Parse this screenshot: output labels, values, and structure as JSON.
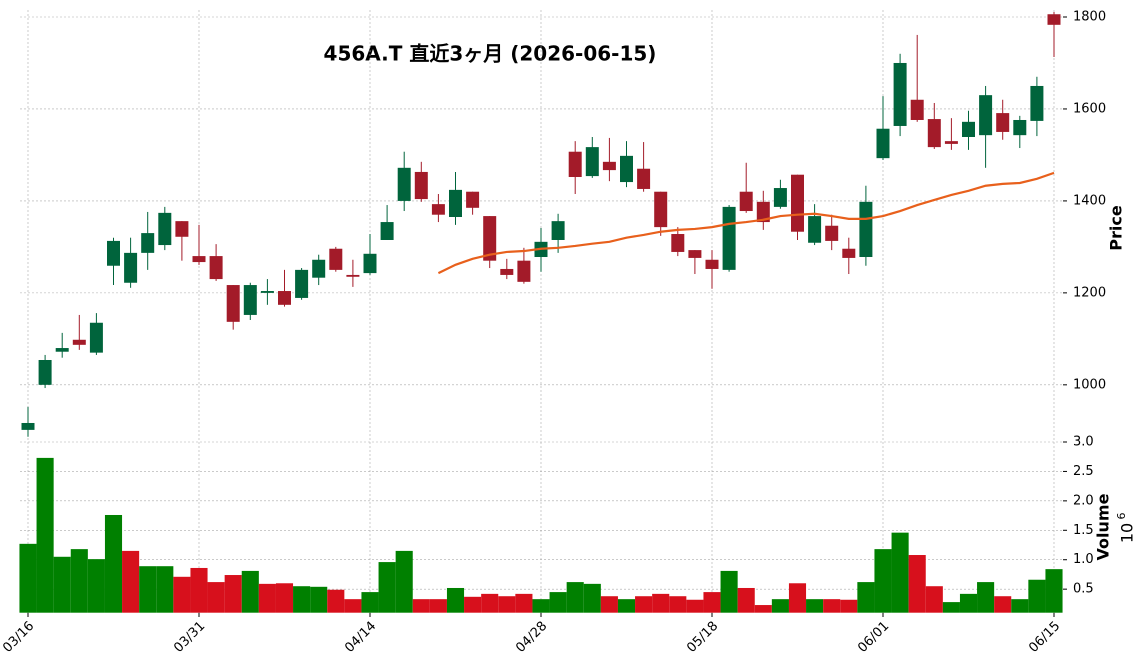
{
  "chart_data": [
    {
      "type": "candlestick",
      "title": "456A.T 直近3ヶ月 (2026-06-15)",
      "ylabel": "Price",
      "categories": [
        "03/16",
        null,
        null,
        null,
        null,
        null,
        null,
        null,
        null,
        null,
        "03/31",
        null,
        null,
        null,
        null,
        null,
        null,
        null,
        null,
        null,
        "04/14",
        null,
        null,
        null,
        null,
        null,
        null,
        null,
        null,
        null,
        "04/28",
        null,
        null,
        null,
        null,
        null,
        null,
        null,
        null,
        null,
        "05/18",
        null,
        null,
        null,
        null,
        null,
        null,
        null,
        null,
        null,
        "06/01",
        null,
        null,
        null,
        null,
        null,
        null,
        null,
        null,
        null,
        "06/15"
      ],
      "open": [
        902,
        1000,
        1072,
        1098,
        1070,
        1259,
        1222,
        1287,
        1304,
        1356,
        1280,
        1280,
        1217,
        1152,
        1200,
        1204,
        1189,
        1233,
        1296,
        1239,
        1243,
        1315,
        1400,
        1463,
        1393,
        1365,
        1420,
        1367,
        1252,
        1270,
        1278,
        1315,
        1507,
        1454,
        1485,
        1441,
        1470,
        1420,
        1328,
        1293,
        1272,
        1250,
        1420,
        1398,
        1387,
        1457,
        1309,
        1346,
        1296,
        1278,
        1493,
        1563,
        1620,
        1578,
        1530,
        1539,
        1543,
        1591,
        1543,
        1574,
        1806
      ],
      "high": [
        952,
        1065,
        1113,
        1152,
        1156,
        1320,
        1320,
        1376,
        1387,
        1356,
        1348,
        1306,
        1217,
        1222,
        1230,
        1250,
        1254,
        1283,
        1300,
        1272,
        1328,
        1391,
        1507,
        1485,
        1415,
        1463,
        1420,
        1367,
        1274,
        1298,
        1341,
        1372,
        1530,
        1539,
        1537,
        1530,
        1528,
        1420,
        1343,
        1293,
        1293,
        1391,
        1483,
        1422,
        1446,
        1457,
        1393,
        1370,
        1320,
        1433,
        1628,
        1720,
        1761,
        1613,
        1580,
        1596,
        1650,
        1620,
        1585,
        1670,
        1811
      ],
      "low": [
        887,
        993,
        1059,
        1076,
        1065,
        1217,
        1211,
        1250,
        1293,
        1270,
        1261,
        1226,
        1120,
        1141,
        1174,
        1170,
        1185,
        1217,
        1246,
        1213,
        1239,
        1315,
        1378,
        1398,
        1354,
        1348,
        1370,
        1254,
        1230,
        1220,
        1246,
        1287,
        1415,
        1450,
        1443,
        1430,
        1420,
        1324,
        1280,
        1241,
        1209,
        1246,
        1374,
        1337,
        1383,
        1315,
        1304,
        1293,
        1241,
        1259,
        1489,
        1541,
        1572,
        1513,
        1511,
        1511,
        1472,
        1533,
        1515,
        1541,
        1713
      ],
      "close": [
        917,
        1054,
        1080,
        1087,
        1135,
        1313,
        1287,
        1330,
        1374,
        1322,
        1267,
        1230,
        1137,
        1217,
        1204,
        1174,
        1250,
        1272,
        1250,
        1235,
        1285,
        1354,
        1472,
        1404,
        1370,
        1424,
        1385,
        1270,
        1239,
        1224,
        1311,
        1356,
        1452,
        1517,
        1467,
        1498,
        1426,
        1343,
        1289,
        1276,
        1252,
        1387,
        1378,
        1354,
        1428,
        1333,
        1367,
        1313,
        1276,
        1398,
        1557,
        1700,
        1576,
        1517,
        1524,
        1572,
        1630,
        1550,
        1576,
        1650,
        1783
      ],
      "up_color": "#00643c",
      "down_color": "#a31b29",
      "series": [
        {
          "color": "#e8601c",
          "values": [
            null,
            null,
            null,
            null,
            null,
            null,
            null,
            null,
            null,
            null,
            null,
            null,
            null,
            null,
            null,
            null,
            null,
            null,
            null,
            null,
            null,
            null,
            null,
            null,
            1243,
            1261,
            1274,
            1283,
            1289,
            1291,
            1296,
            1298,
            1302,
            1307,
            1311,
            1320,
            1326,
            1333,
            1337,
            1339,
            1343,
            1350,
            1354,
            1359,
            1367,
            1370,
            1372,
            1367,
            1361,
            1361,
            1367,
            1378,
            1391,
            1402,
            1413,
            1422,
            1433,
            1437,
            1439,
            1448,
            1461
          ]
        }
      ],
      "ylim": [
        880,
        1815
      ],
      "yticks": [
        1000,
        1200,
        1400,
        1600,
        1800
      ],
      "grid": true
    },
    {
      "type": "bar",
      "ylabel": "Volume",
      "scale_base": "10",
      "scale_exponent": "6",
      "values": [
        1.27,
        2.73,
        1.05,
        1.18,
        1.01,
        1.76,
        1.15,
        0.89,
        0.89,
        0.71,
        0.86,
        0.62,
        0.74,
        0.81,
        0.59,
        0.6,
        0.55,
        0.54,
        0.49,
        0.33,
        0.45,
        0.96,
        1.15,
        0.33,
        0.33,
        0.52,
        0.37,
        0.42,
        0.38,
        0.42,
        0.33,
        0.45,
        0.62,
        0.59,
        0.38,
        0.33,
        0.38,
        0.42,
        0.38,
        0.32,
        0.45,
        0.81,
        0.52,
        0.23,
        0.33,
        0.6,
        0.33,
        0.33,
        0.32,
        0.62,
        1.18,
        1.46,
        1.08,
        0.55,
        0.28,
        0.42,
        0.62,
        0.38,
        0.33,
        0.66,
        0.84
      ],
      "colors": [
        "#008000",
        "#008000",
        "#008000",
        "#008000",
        "#008000",
        "#008000",
        "#d7101c",
        "#008000",
        "#008000",
        "#d7101c",
        "#d7101c",
        "#d7101c",
        "#d7101c",
        "#008000",
        "#d7101c",
        "#d7101c",
        "#008000",
        "#008000",
        "#d7101c",
        "#d7101c",
        "#008000",
        "#008000",
        "#008000",
        "#d7101c",
        "#d7101c",
        "#008000",
        "#d7101c",
        "#d7101c",
        "#d7101c",
        "#d7101c",
        "#008000",
        "#008000",
        "#008000",
        "#008000",
        "#d7101c",
        "#008000",
        "#d7101c",
        "#d7101c",
        "#d7101c",
        "#d7101c",
        "#d7101c",
        "#008000",
        "#d7101c",
        "#d7101c",
        "#008000",
        "#d7101c",
        "#008000",
        "#d7101c",
        "#d7101c",
        "#008000",
        "#008000",
        "#008000",
        "#d7101c",
        "#d7101c",
        "#008000",
        "#008000",
        "#008000",
        "#d7101c",
        "#008000",
        "#008000",
        "#008000"
      ],
      "ylim": [
        0.1,
        3.0
      ],
      "yticks": [
        0.5,
        {
          "value": 1,
          "label": "1.0"
        },
        1.5,
        {
          "value": 2,
          "label": "2.0"
        },
        2.5,
        {
          "value": 3,
          "label": "3.0"
        }
      ],
      "grid": true
    }
  ]
}
